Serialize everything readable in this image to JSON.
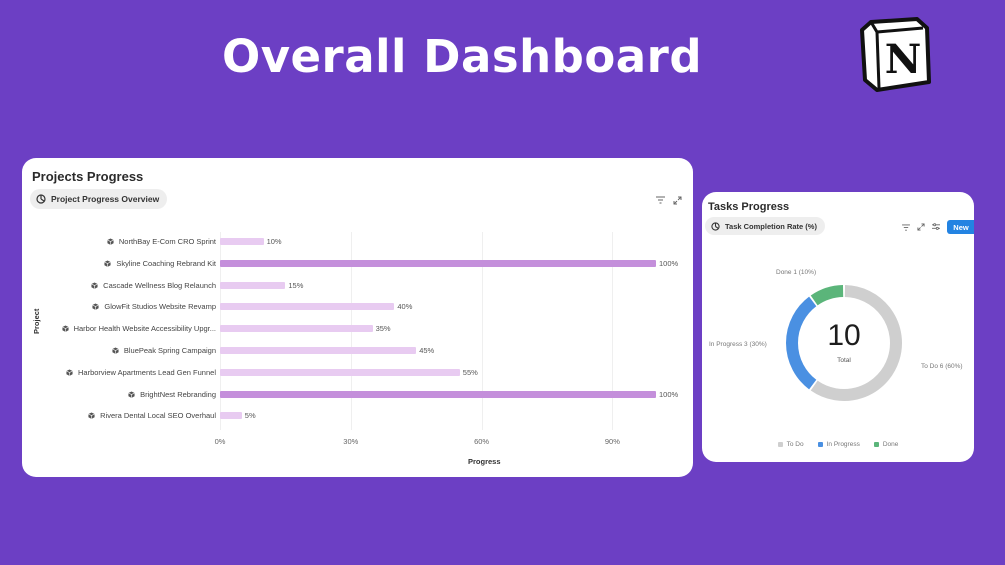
{
  "hero": {
    "title": "Overall Dashboard"
  },
  "logo": {
    "letter": "N"
  },
  "projects": {
    "card_title": "Projects Progress",
    "view_tab": "Project Progress Overview",
    "chart_data": {
      "type": "bar",
      "orientation": "horizontal",
      "xlabel": "Progress",
      "ylabel": "Project",
      "xlim": [
        0,
        100
      ],
      "x_ticks": [
        "0%",
        "30%",
        "60%",
        "90%"
      ],
      "x_tick_values": [
        0,
        30,
        60,
        90
      ],
      "grid": "vertical",
      "colors": {
        "complete": "#c48fdb",
        "partial": "#e8cbf1"
      },
      "categories": [
        "NorthBay E-Com CRO Sprint",
        "Skyline Coaching Rebrand Kit",
        "Cascade Wellness Blog Relaunch",
        "GlowFit Studios Website Revamp",
        "Harbor Health Website Accessibility Upgr...",
        "BluePeak Spring Campaign",
        "Harborview Apartments Lead Gen Funnel",
        "BrightNest Rebranding",
        "Rivera Dental Local SEO Overhaul"
      ],
      "values": [
        10,
        100,
        15,
        40,
        35,
        45,
        55,
        100,
        5
      ],
      "value_labels": [
        "10%",
        "100%",
        "15%",
        "40%",
        "35%",
        "45%",
        "55%",
        "100%",
        "5%"
      ]
    }
  },
  "tasks": {
    "card_title": "Tasks Progress",
    "view_tab": "Task Completion Rate (%)",
    "new_label": "New",
    "chart_data": {
      "type": "pie",
      "variant": "donut",
      "total": "10",
      "total_label": "Total",
      "slices": [
        {
          "name": "To Do",
          "value": 6,
          "label": "To Do 6 (60%)",
          "color": "#cfcfcf"
        },
        {
          "name": "In Progress",
          "value": 3,
          "label": "In Progress 3 (30%)",
          "color": "#4a90e2"
        },
        {
          "name": "Done",
          "value": 1,
          "label": "Done 1 (10%)",
          "color": "#5bb57a"
        }
      ],
      "legend": [
        "To Do",
        "In Progress",
        "Done"
      ],
      "legend_placement": "bottom"
    }
  }
}
